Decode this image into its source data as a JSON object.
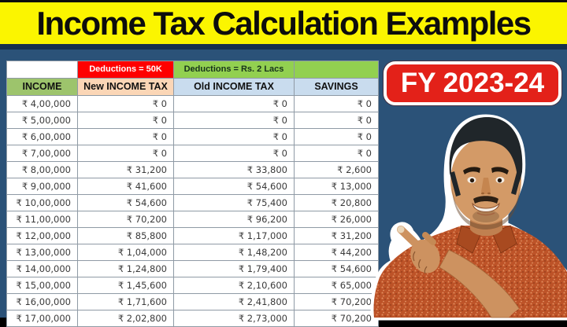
{
  "banner": {
    "title": "Income Tax Calculation Examples"
  },
  "badge": {
    "label": "FY 2023-24"
  },
  "table": {
    "deduction_new": "Deductions = 50K",
    "deduction_old": "Deductions = Rs. 2 Lacs",
    "columns": [
      "INCOME",
      "New INCOME TAX",
      "Old INCOME TAX",
      "SAVINGS"
    ],
    "rows": [
      [
        "₹ 4,00,000",
        "₹ 0",
        "₹ 0",
        "₹ 0"
      ],
      [
        "₹ 5,00,000",
        "₹ 0",
        "₹ 0",
        "₹ 0"
      ],
      [
        "₹ 6,00,000",
        "₹ 0",
        "₹ 0",
        "₹ 0"
      ],
      [
        "₹ 7,00,000",
        "₹ 0",
        "₹ 0",
        "₹ 0"
      ],
      [
        "₹ 8,00,000",
        "₹ 31,200",
        "₹ 33,800",
        "₹ 2,600"
      ],
      [
        "₹ 9,00,000",
        "₹ 41,600",
        "₹ 54,600",
        "₹ 13,000"
      ],
      [
        "₹ 10,00,000",
        "₹ 54,600",
        "₹ 75,400",
        "₹ 20,800"
      ],
      [
        "₹ 11,00,000",
        "₹ 70,200",
        "₹ 96,200",
        "₹ 26,000"
      ],
      [
        "₹ 12,00,000",
        "₹ 85,800",
        "₹ 1,17,000",
        "₹ 31,200"
      ],
      [
        "₹ 13,00,000",
        "₹ 1,04,000",
        "₹ 1,48,200",
        "₹ 44,200"
      ],
      [
        "₹ 14,00,000",
        "₹ 1,24,800",
        "₹ 1,79,400",
        "₹ 54,600"
      ],
      [
        "₹ 15,00,000",
        "₹ 1,45,600",
        "₹ 2,10,600",
        "₹ 65,000"
      ],
      [
        "₹ 16,00,000",
        "₹ 1,71,600",
        "₹ 2,41,800",
        "₹ 70,200"
      ],
      [
        "₹ 17,00,000",
        "₹ 2,02,800",
        "₹ 2,73,000",
        "₹ 70,200"
      ]
    ]
  },
  "chart_data": {
    "type": "table",
    "title": "Income Tax Calculation Examples",
    "subtitle": "FY 2023-24",
    "columns": [
      "INCOME",
      "New INCOME TAX (Deductions = 50K)",
      "Old INCOME TAX (Deductions = Rs. 2 Lacs)",
      "SAVINGS"
    ],
    "rows": [
      [
        400000,
        0,
        0,
        0
      ],
      [
        500000,
        0,
        0,
        0
      ],
      [
        600000,
        0,
        0,
        0
      ],
      [
        700000,
        0,
        0,
        0
      ],
      [
        800000,
        31200,
        33800,
        2600
      ],
      [
        900000,
        41600,
        54600,
        13000
      ],
      [
        1000000,
        54600,
        75400,
        20800
      ],
      [
        1100000,
        70200,
        96200,
        26000
      ],
      [
        1200000,
        85800,
        117000,
        31200
      ],
      [
        1300000,
        104000,
        148200,
        44200
      ],
      [
        1400000,
        124800,
        179400,
        54600
      ],
      [
        1500000,
        145600,
        210600,
        65000
      ],
      [
        1600000,
        171600,
        241800,
        70200
      ],
      [
        1700000,
        202800,
        273000,
        70200
      ]
    ],
    "currency": "₹"
  },
  "person": {
    "label": "presenter pointing at the tax table"
  },
  "colors": {
    "banner_bg": "#fbf500",
    "title_text": "#0d0d0d",
    "background": "#2b5278",
    "separator": "#17304d",
    "badge_bg": "#e32119",
    "badge_border": "#ffffff",
    "deduction_new_bg": "#fe0000",
    "deduction_old_bg": "#92d050",
    "income_header_bg": "#9dc46c",
    "new_tax_header_bg": "#fbd6b6",
    "old_tax_header_bg": "#c9dcee",
    "savings_header_bg": "#c9dcee",
    "shirt_color": "#bd5328"
  }
}
